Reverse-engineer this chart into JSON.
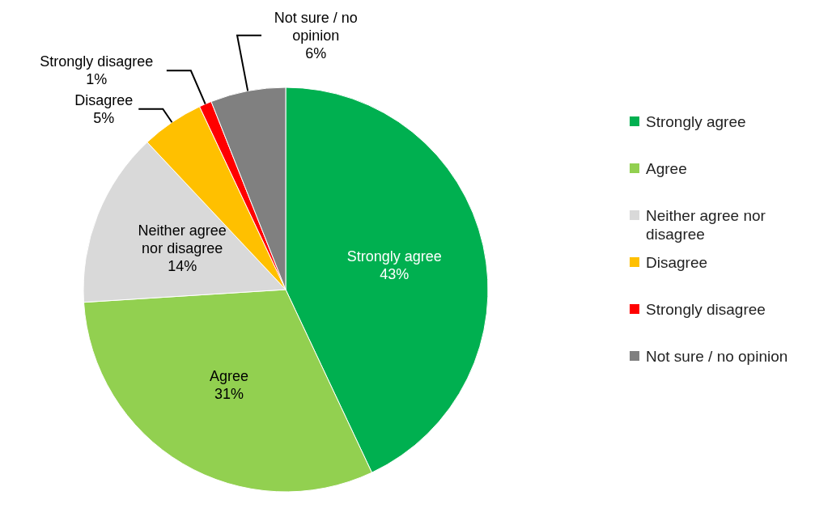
{
  "chart_data": {
    "type": "pie",
    "categories": [
      "Strongly agree",
      "Agree",
      "Neither agree nor disagree",
      "Disagree",
      "Strongly disagree",
      "Not sure / no opinion"
    ],
    "values": [
      43,
      31,
      14,
      5,
      1,
      6
    ],
    "value_labels": [
      "43%",
      "31%",
      "14%",
      "5%",
      "1%",
      "6%"
    ],
    "colors": [
      "#00b050",
      "#92d050",
      "#d9d9d9",
      "#ffc000",
      "#ff0000",
      "#808080"
    ],
    "legend": "right"
  }
}
